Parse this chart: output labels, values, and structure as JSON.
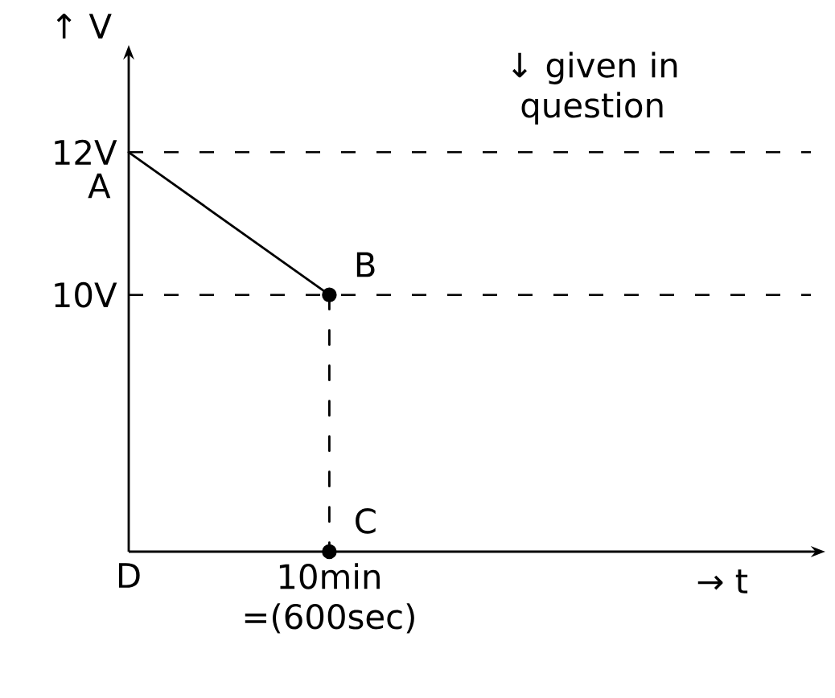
{
  "chart_data": {
    "type": "line",
    "ylabel": "↑ V",
    "categories": [
      "D",
      "10min =(600sec)"
    ],
    "ylim": [
      6.4,
      13.3
    ],
    "yticks": [
      {
        "value": 10,
        "label": "10V"
      },
      {
        "value": 12,
        "label": "12V"
      }
    ],
    "series": [
      {
        "values": [
          12,
          10
        ],
        "color": "#000000",
        "line_style": "solid"
      },
      {
        "type": "line",
        "x": [
          "10min =(600sec)",
          "10min =(600sec)"
        ],
        "values": [
          10,
          6.4
        ],
        "color": "#000000",
        "line_style": "dashed"
      },
      {
        "type": "scatter",
        "x": [
          "10min =(600sec)",
          "10min =(600sec)"
        ],
        "values": [
          10,
          6.4
        ],
        "color": "#000000",
        "marker": "circle"
      }
    ],
    "ref_lines": [
      {
        "axis": "y",
        "value": 12,
        "color": "#000000",
        "line_style": "dashed"
      },
      {
        "axis": "y",
        "value": 10,
        "color": "#000000",
        "line_style": "dashed"
      }
    ],
    "annotations": [
      {
        "text": "A",
        "x": "D",
        "y": 12
      },
      {
        "text": "B",
        "x": "10min =(600sec)",
        "y": 10
      },
      {
        "text": "C",
        "x": "10min =(600sec)",
        "y": 6.4
      },
      "↓ given in question",
      "→ t"
    ]
  }
}
